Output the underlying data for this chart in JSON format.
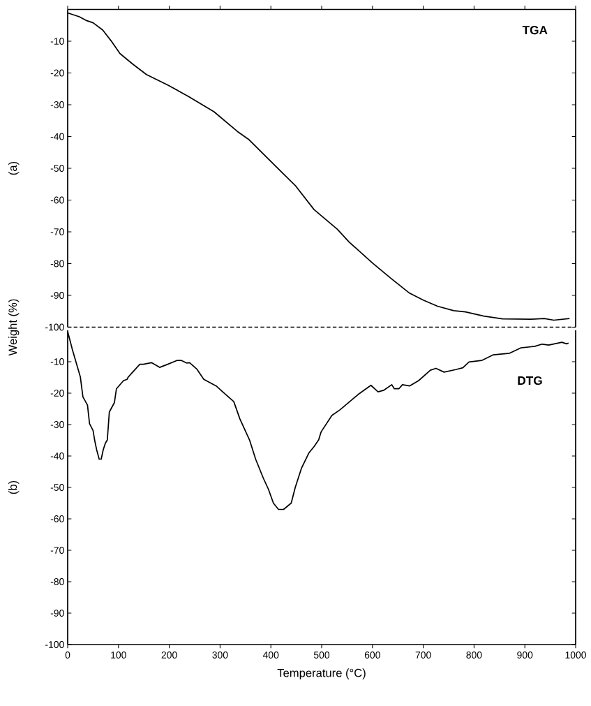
{
  "chart_data": [
    {
      "type": "line",
      "ylabel": "Weight (%)",
      "annotations": [
        "TGA",
        "(a)"
      ],
      "tick_labels": "y",
      "xlim": [
        0,
        1000
      ],
      "xticks": [
        0,
        100,
        200,
        300,
        400,
        500,
        600,
        700,
        800,
        900,
        1000
      ],
      "ylim": [
        -100,
        0
      ],
      "yticks": [
        -10,
        -20,
        -30,
        -40,
        -50,
        -60,
        -70,
        -80,
        -90,
        -100
      ],
      "ref_lines": [
        {
          "axis": "y",
          "value": -100,
          "line_style": "dashed",
          "color": "#000000"
        }
      ],
      "series": [
        {
          "color": "#000000",
          "x": [
            0,
            23,
            37,
            50,
            69,
            87,
            103,
            128,
            155,
            197,
            238,
            288,
            334,
            357,
            394,
            449,
            485,
            531,
            554,
            600,
            636,
            673,
            700,
            728,
            760,
            783,
            819,
            856,
            911,
            938,
            957,
            988
          ],
          "values": [
            -1.1,
            -2.3,
            -3.5,
            -4.2,
            -6.5,
            -10.2,
            -13.9,
            -17.2,
            -20.5,
            -23.8,
            -27.4,
            -32.2,
            -38.4,
            -41,
            -46.9,
            -55.6,
            -63,
            -69.2,
            -73.2,
            -79.8,
            -84.6,
            -89.3,
            -91.5,
            -93.4,
            -94.8,
            -95.2,
            -96.5,
            -97.4,
            -97.5,
            -97.3,
            -97.8,
            -97.3
          ]
        }
      ]
    },
    {
      "type": "line",
      "xlabel": "Temperature (°C)",
      "annotations": [
        "DTG",
        "(b)"
      ],
      "xlim": [
        0,
        1000
      ],
      "xticks": [
        0,
        100,
        200,
        300,
        400,
        500,
        600,
        700,
        800,
        900,
        1000
      ],
      "ylim": [
        -100,
        0
      ],
      "yticks": [
        -10,
        -20,
        -30,
        -40,
        -50,
        -60,
        -70,
        -80,
        -90,
        -100
      ],
      "series": [
        {
          "color": "#000000",
          "x": [
            0,
            9,
            25,
            30,
            39,
            43,
            50,
            53,
            57,
            62,
            66,
            70,
            74,
            78,
            82,
            92,
            96,
            110,
            117,
            119,
            142,
            149,
            165,
            181,
            197,
            215,
            224,
            234,
            240,
            254,
            268,
            293,
            311,
            327,
            339,
            358,
            370,
            385,
            395,
            405,
            415,
            425,
            440,
            448,
            460,
            475,
            485,
            494,
            499,
            520,
            536,
            558,
            572,
            597,
            611,
            622,
            638,
            643,
            652,
            659,
            673,
            691,
            714,
            725,
            741,
            764,
            778,
            790,
            815,
            838,
            870,
            892,
            920,
            934,
            947,
            973,
            982,
            986
          ],
          "values": [
            -0.4,
            -6,
            -14.9,
            -21.2,
            -23.8,
            -29.7,
            -31.9,
            -34.9,
            -38,
            -41,
            -41,
            -38,
            -36,
            -34.9,
            -26,
            -23,
            -18.6,
            -16,
            -15.6,
            -14.9,
            -10.8,
            -10.8,
            -10.3,
            -11.8,
            -10.8,
            -9.6,
            -9.6,
            -10.4,
            -10.3,
            -12.3,
            -15.6,
            -17.8,
            -20.4,
            -22.7,
            -28.2,
            -34.9,
            -41,
            -47,
            -50.5,
            -55,
            -57,
            -57,
            -55,
            -50,
            -44,
            -39,
            -37,
            -34.9,
            -32.3,
            -27.1,
            -25.3,
            -22.3,
            -20.4,
            -17.5,
            -19.6,
            -19.1,
            -17.3,
            -18.6,
            -18.6,
            -17.3,
            -17.7,
            -16,
            -12.7,
            -12.1,
            -13.3,
            -12.5,
            -11.9,
            -10.1,
            -9.6,
            -7.8,
            -7.3,
            -5.6,
            -5.1,
            -4.4,
            -4.7,
            -3.8,
            -4.3,
            -4.1
          ]
        }
      ]
    }
  ]
}
